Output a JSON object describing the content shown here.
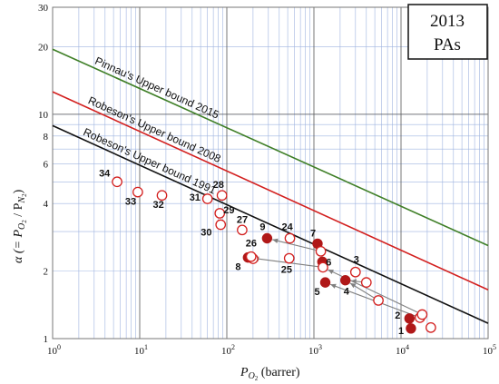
{
  "chart_data": {
    "type": "scatter",
    "title_line1": "2013",
    "title_line2": "PAs",
    "xlabel": "P",
    "xlabel_sub": "O",
    "xlabel_sub2": "2",
    "xlabel_unit": " (barrer)",
    "ylabel": "α (= P",
    "ylabel_sub_a": "O",
    "ylabel_sub_a2": "2",
    "ylabel_mid": " / P",
    "ylabel_sub_b": "N",
    "ylabel_sub_b2": "2",
    "ylabel_end": ")",
    "x_scale": "log",
    "y_scale": "log",
    "xlim": [
      1,
      100000
    ],
    "ylim": [
      1,
      30
    ],
    "grid": true,
    "x_ticks": [
      {
        "value": 1,
        "base": "10",
        "exp": "0"
      },
      {
        "value": 10,
        "base": "10",
        "exp": "1"
      },
      {
        "value": 100,
        "base": "10",
        "exp": "2"
      },
      {
        "value": 1000,
        "base": "10",
        "exp": "3"
      },
      {
        "value": 10000,
        "base": "10",
        "exp": "4"
      },
      {
        "value": 100000,
        "base": "10",
        "exp": "5"
      }
    ],
    "y_ticks": [
      {
        "value": 1,
        "label": "1"
      },
      {
        "value": 2,
        "label": "2"
      },
      {
        "value": 4,
        "label": "4"
      },
      {
        "value": 6,
        "label": "6"
      },
      {
        "value": 8,
        "label": "8"
      },
      {
        "value": 10,
        "label": "10"
      },
      {
        "value": 20,
        "label": "20"
      },
      {
        "value": 30,
        "label": "30"
      }
    ],
    "upper_bounds": [
      {
        "label": "Pinnau's Upper bound 2015",
        "color": "#3f7f27",
        "x": [
          1,
          100000
        ],
        "y": [
          19.5,
          2.6
        ]
      },
      {
        "label": "Robeson's Upper bound 2008",
        "color": "#d3201f",
        "x": [
          1,
          100000
        ],
        "y": [
          12.6,
          1.65
        ]
      },
      {
        "label": "Robeson's Upper bound 1991",
        "color": "#111111",
        "x": [
          1,
          100000
        ],
        "y": [
          8.9,
          1.17
        ]
      }
    ],
    "points": [
      {
        "label": "1",
        "x": 13000,
        "y": 1.11,
        "filled": true
      },
      {
        "label": "2",
        "x": 12500,
        "y": 1.23,
        "filled": true
      },
      {
        "label": "",
        "x": 16500,
        "y": 1.24,
        "filled": false
      },
      {
        "label": "",
        "x": 17500,
        "y": 1.28,
        "filled": false
      },
      {
        "label": "",
        "x": 22000,
        "y": 1.12,
        "filled": false
      },
      {
        "label": "3",
        "x": 3000,
        "y": 1.98,
        "filled": false
      },
      {
        "label": "",
        "x": 4000,
        "y": 1.78,
        "filled": false
      },
      {
        "label": "",
        "x": 5500,
        "y": 1.48,
        "filled": false
      },
      {
        "label": "4",
        "x": 2300,
        "y": 1.82,
        "filled": true
      },
      {
        "label": "5",
        "x": 1350,
        "y": 1.78,
        "filled": true
      },
      {
        "label": "6",
        "x": 1250,
        "y": 2.2,
        "filled": true
      },
      {
        "label": "",
        "x": 1270,
        "y": 2.08,
        "filled": false
      },
      {
        "label": "7",
        "x": 1100,
        "y": 2.65,
        "filled": true
      },
      {
        "label": "",
        "x": 1200,
        "y": 2.45,
        "filled": false
      },
      {
        "label": "8",
        "x": 175,
        "y": 2.3,
        "filled": true
      },
      {
        "label": "",
        "x": 200,
        "y": 2.27,
        "filled": false
      },
      {
        "label": "9",
        "x": 290,
        "y": 2.8,
        "filled": true
      },
      {
        "label": "24",
        "x": 530,
        "y": 2.8,
        "filled": false
      },
      {
        "label": "25",
        "x": 520,
        "y": 2.28,
        "filled": false
      },
      {
        "label": "26",
        "x": 190,
        "y": 2.32,
        "filled": false
      },
      {
        "label": "27",
        "x": 150,
        "y": 3.05,
        "filled": false
      },
      {
        "label": "28",
        "x": 88,
        "y": 4.35,
        "filled": false
      },
      {
        "label": "29",
        "x": 83,
        "y": 3.62,
        "filled": false
      },
      {
        "label": "30",
        "x": 85,
        "y": 3.22,
        "filled": false
      },
      {
        "label": "31",
        "x": 60,
        "y": 4.2,
        "filled": false
      },
      {
        "label": "32",
        "x": 18,
        "y": 4.35,
        "filled": false
      },
      {
        "label": "33",
        "x": 9.5,
        "y": 4.5,
        "filled": false
      },
      {
        "label": "34",
        "x": 5.5,
        "y": 5.0,
        "filled": false
      }
    ],
    "arrows": [
      {
        "from_x": 17500,
        "from_y": 1.28,
        "to_x": 1270,
        "to_y": 2.08
      },
      {
        "from_x": 16500,
        "from_y": 1.24,
        "to_x": 1350,
        "to_y": 1.78
      },
      {
        "from_x": 5500,
        "from_y": 1.48,
        "to_x": 2300,
        "to_y": 1.82
      },
      {
        "from_x": 1200,
        "from_y": 2.45,
        "to_x": 290,
        "to_y": 2.8
      },
      {
        "from_x": 1270,
        "from_y": 2.08,
        "to_x": 175,
        "to_y": 2.3
      },
      {
        "from_x": 4000,
        "from_y": 1.78,
        "to_x": 2300,
        "to_y": 1.82
      }
    ],
    "colors": {
      "grid": "#9fb4e0",
      "frame": "#777777",
      "open_marker": "#d3201f",
      "filled_marker": "#b01818",
      "arrow": "#808080"
    }
  }
}
